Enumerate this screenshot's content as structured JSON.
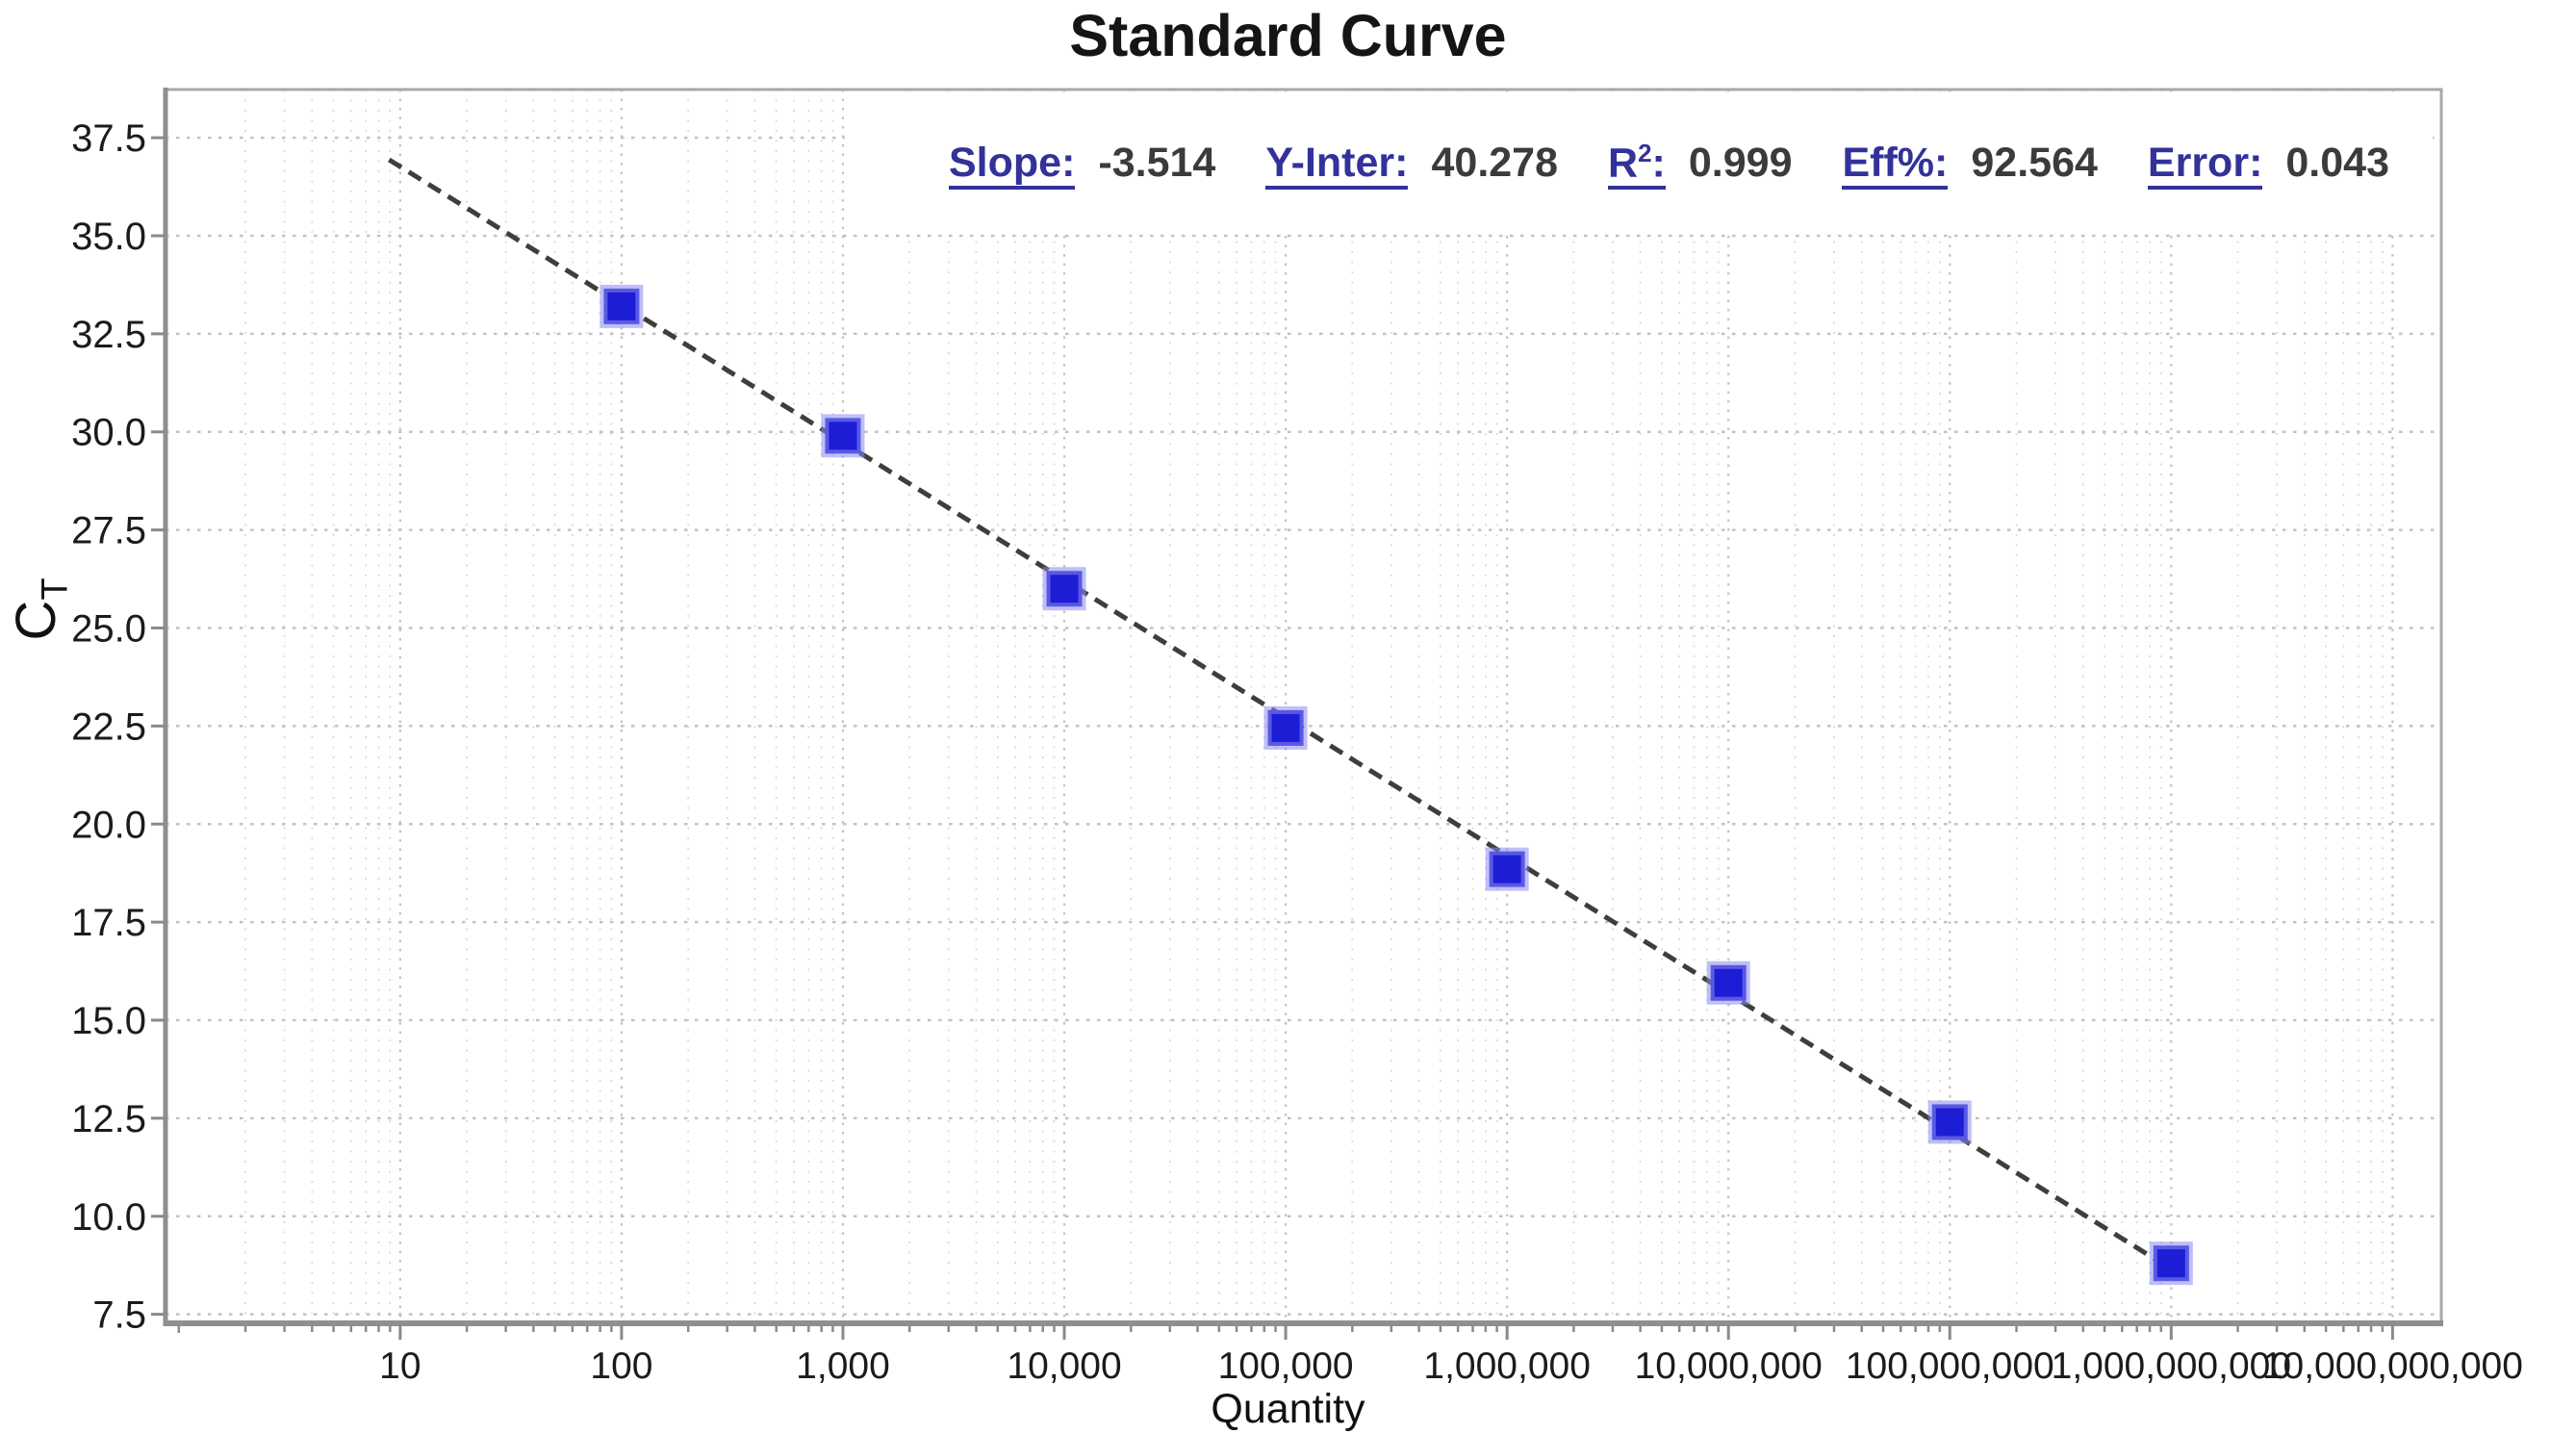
{
  "title": "Standard Curve",
  "stats": [
    {
      "label": "Slope",
      "sup": "",
      "value": "-3.514"
    },
    {
      "label": "Y-Inter",
      "sup": "",
      "value": "40.278"
    },
    {
      "label": "R",
      "sup": "2",
      "value": "0.999"
    },
    {
      "label": "Eff%",
      "sup": "",
      "value": "92.564"
    },
    {
      "label": "Error",
      "sup": "",
      "value": "0.043"
    }
  ],
  "chart_data": {
    "type": "scatter",
    "title": "Standard Curve",
    "xlabel": "Quantity",
    "ylabel": "CT",
    "ylabel_main": "C",
    "ylabel_sub": "T",
    "x_scale": "log10",
    "xlim_log10": [
      -0.06,
      10.22
    ],
    "ylim": [
      7.27,
      38.73
    ],
    "grid": true,
    "legend": false,
    "y_ticks": [
      7.5,
      10.0,
      12.5,
      15.0,
      17.5,
      20.0,
      22.5,
      25.0,
      27.5,
      30.0,
      32.5,
      35.0,
      37.5
    ],
    "y_tick_labels": [
      "7.5",
      "10.0",
      "12.5",
      "15.0",
      "17.5",
      "20.0",
      "22.5",
      "25.0",
      "27.5",
      "30.0",
      "32.5",
      "35.0",
      "37.5"
    ],
    "x_ticks_log10": [
      1,
      2,
      3,
      4,
      5,
      6,
      7,
      8,
      9,
      10
    ],
    "x_tick_labels": [
      "10",
      "100",
      "1,000",
      "10,000",
      "100,000",
      "1,000,000",
      "10,000,000",
      "100,000,000",
      "1,000,000,000",
      "10,000,000,000"
    ],
    "points": [
      {
        "quantity": 100,
        "ct": 33.2
      },
      {
        "quantity": 1000,
        "ct": 29.9
      },
      {
        "quantity": 10000,
        "ct": 26.0
      },
      {
        "quantity": 100000,
        "ct": 22.45
      },
      {
        "quantity": 1000000,
        "ct": 18.85
      },
      {
        "quantity": 10000000,
        "ct": 15.95
      },
      {
        "quantity": 100000000,
        "ct": 12.4
      },
      {
        "quantity": 1000000000,
        "ct": 8.8
      }
    ],
    "trendline": {
      "slope": -3.514,
      "y_intercept": 40.278,
      "x_start_log10": 0.95,
      "x_end_log10": 9.02
    }
  },
  "colors": {
    "marker_fill": "#1d1dd6",
    "marker_halo": "rgba(138,138,240,0.55)",
    "trend_line": "#3f3f39",
    "grid_major": "#c2c2c2",
    "grid_minor": "#dadada",
    "plot_border": "#a8a8a8",
    "axis_strong": "#8f8f8f",
    "tick_color": "#8a8a8a",
    "stat_label": "#32329a",
    "stat_value": "#3b3b3b",
    "text": "#1b1b1b"
  }
}
